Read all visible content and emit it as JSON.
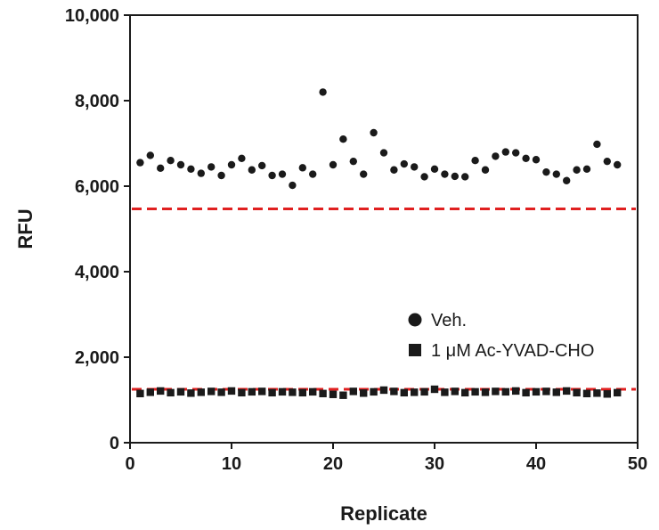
{
  "chart_data": {
    "type": "scatter",
    "title": "",
    "xlabel": "Replicate",
    "ylabel": "RFU",
    "xlim": [
      0,
      50
    ],
    "ylim": [
      0,
      10000
    ],
    "xticks": [
      0,
      10,
      20,
      30,
      40,
      50
    ],
    "yticks": [
      0,
      2000,
      4000,
      6000,
      8000,
      10000
    ],
    "xtick_labels": [
      "0",
      "10",
      "20",
      "30",
      "40",
      "50"
    ],
    "ytick_labels": [
      "0",
      "2,000",
      "4,000",
      "6,000",
      "8,000",
      "10,000"
    ],
    "grid": false,
    "legend": {
      "position": "right-lower"
    },
    "series": [
      {
        "name": "Veh.",
        "marker": "circle",
        "color": "#1a1a1a",
        "x": [
          1,
          2,
          3,
          4,
          5,
          6,
          7,
          8,
          9,
          10,
          11,
          12,
          13,
          14,
          15,
          16,
          17,
          18,
          19,
          20,
          21,
          22,
          23,
          24,
          25,
          26,
          27,
          28,
          29,
          30,
          31,
          32,
          33,
          34,
          35,
          36,
          37,
          38,
          39,
          40,
          41,
          42,
          43,
          44,
          45,
          46,
          47,
          48
        ],
        "y": [
          6550,
          6720,
          6420,
          6600,
          6500,
          6400,
          6300,
          6450,
          6250,
          6500,
          6650,
          6380,
          6480,
          6250,
          6280,
          6020,
          6430,
          6280,
          8200,
          6500,
          7100,
          6580,
          6280,
          7250,
          6780,
          6380,
          6520,
          6450,
          6220,
          6400,
          6280,
          6230,
          6220,
          6600,
          6380,
          6700,
          6800,
          6780,
          6650,
          6620,
          6330,
          6280,
          6130,
          6380,
          6400,
          6980,
          6580,
          6500
        ]
      },
      {
        "name": "1 μM Ac-YVAD-CHO",
        "marker": "square",
        "color": "#1a1a1a",
        "x": [
          1,
          2,
          3,
          4,
          5,
          6,
          7,
          8,
          9,
          10,
          11,
          12,
          13,
          14,
          15,
          16,
          17,
          18,
          19,
          20,
          21,
          22,
          23,
          24,
          25,
          26,
          27,
          28,
          29,
          30,
          31,
          32,
          33,
          34,
          35,
          36,
          37,
          38,
          39,
          40,
          41,
          42,
          43,
          44,
          45,
          46,
          47,
          48
        ],
        "y": [
          1150,
          1180,
          1210,
          1170,
          1190,
          1160,
          1180,
          1200,
          1180,
          1210,
          1170,
          1190,
          1200,
          1170,
          1190,
          1180,
          1170,
          1190,
          1150,
          1130,
          1110,
          1200,
          1160,
          1190,
          1230,
          1200,
          1170,
          1180,
          1190,
          1250,
          1180,
          1200,
          1170,
          1190,
          1180,
          1200,
          1190,
          1210,
          1170,
          1190,
          1200,
          1180,
          1210,
          1170,
          1150,
          1160,
          1140,
          1170
        ]
      }
    ],
    "reference_lines": [
      {
        "y": 5470,
        "color": "#e02020",
        "style": "dashed"
      },
      {
        "y": 1250,
        "color": "#e02020",
        "style": "dashed"
      }
    ]
  }
}
